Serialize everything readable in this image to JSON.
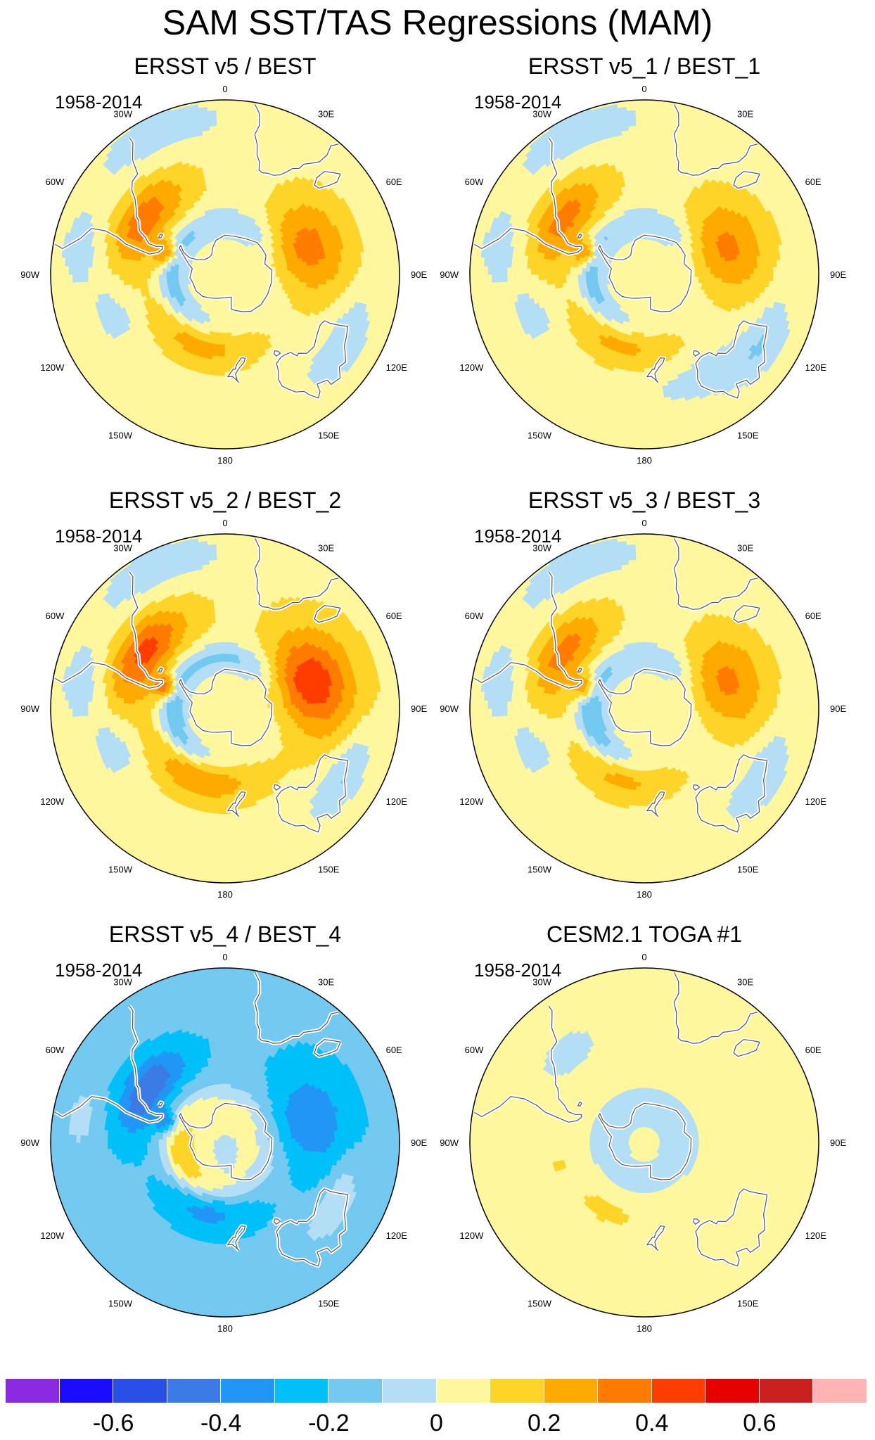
{
  "title": "SAM SST/TAS Regressions (MAM)",
  "panels": [
    {
      "title": "ERSST v5 / BEST",
      "period": "1958-2014",
      "pattern": "obs",
      "scale": 1.0
    },
    {
      "title": "ERSST v5_1 / BEST_1",
      "period": "1958-2014",
      "pattern": "obs1",
      "scale": 0.95
    },
    {
      "title": "ERSST v5_2 / BEST_2",
      "period": "1958-2014",
      "pattern": "obs2",
      "scale": 1.25
    },
    {
      "title": "ERSST v5_3 / BEST_3",
      "period": "1958-2014",
      "pattern": "obs3",
      "scale": 0.95
    },
    {
      "title": "ERSST v5_4 / BEST_4",
      "period": "1958-2014",
      "pattern": "obs4",
      "scale": 1.0
    },
    {
      "title": "CESM2.1 TOGA #1",
      "period": "1958-2014",
      "pattern": "model",
      "scale": 1.0
    }
  ],
  "longitude_labels": [
    "0",
    "30E",
    "60E",
    "90E",
    "120E",
    "150E",
    "180",
    "150W",
    "120W",
    "90W",
    "60W",
    "30W"
  ],
  "colorbar": {
    "levels": [
      -0.7,
      -0.6,
      -0.5,
      -0.4,
      -0.3,
      -0.2,
      -0.1,
      0,
      0.1,
      0.2,
      0.3,
      0.4,
      0.5,
      0.6,
      0.7
    ],
    "colors": [
      "#8a2be2",
      "#1a0cff",
      "#2850e8",
      "#3a7be6",
      "#2196f5",
      "#00c0fa",
      "#73c9f0",
      "#b3def5",
      "#fff79e",
      "#ffd429",
      "#ffaa00",
      "#ff7c00",
      "#ff3d00",
      "#e60000",
      "#cc1f1f",
      "#ffb3b3"
    ],
    "labels": [
      "-0.6",
      "-0.4",
      "-0.2",
      "0",
      "0.2",
      "0.4",
      "0.6"
    ]
  }
}
